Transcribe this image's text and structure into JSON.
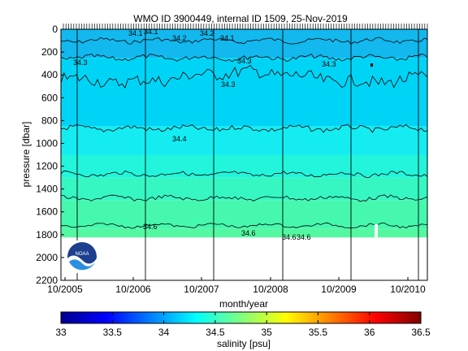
{
  "chart_data": {
    "type": "heatmap",
    "title": "WMO ID 3900449, internal ID 1509, 25-Nov-2019",
    "xlabel": "month/year",
    "ylabel": "pressure [dbar]",
    "x_ticks": [
      "10/2005",
      "10/2006",
      "10/2007",
      "10/2008",
      "10/2009",
      "10/2010"
    ],
    "y_ticks": [
      0,
      200,
      400,
      600,
      800,
      1000,
      1200,
      1400,
      1600,
      1800,
      2000,
      2200
    ],
    "ylim": [
      0,
      2200
    ],
    "y_reversed": true,
    "data_bottom_pressure": 1825,
    "colorbar": {
      "label": "salinity [psu]",
      "range": [
        33,
        36.5
      ],
      "ticks": [
        "33",
        "33.5",
        "34",
        "34.5",
        "35",
        "35.5",
        "36",
        "36.5"
      ],
      "colormap": "jet"
    },
    "layers": [
      {
        "top": 0,
        "bottom": 250,
        "salinity": 34.05,
        "color": "#12b8ee"
      },
      {
        "top": 250,
        "bottom": 850,
        "salinity": 34.2,
        "color": "#00d4f6"
      },
      {
        "top": 850,
        "bottom": 1100,
        "salinity": 34.4,
        "color": "#14ecf2"
      },
      {
        "top": 1100,
        "bottom": 1300,
        "salinity": 34.5,
        "color": "#22f5dc"
      },
      {
        "top": 1300,
        "bottom": 1500,
        "salinity": 34.55,
        "color": "#36f7c2"
      },
      {
        "top": 1500,
        "bottom": 1750,
        "salinity": 34.6,
        "color": "#46f8ae"
      },
      {
        "top": 1750,
        "bottom": 1825,
        "salinity": 34.65,
        "color": "#54f8a0"
      }
    ],
    "contours": [
      {
        "level": "34.1",
        "mean_pressure": 100
      },
      {
        "level": "34.2",
        "mean_pressure": 250
      },
      {
        "level": "34.3",
        "mean_pressure": 420
      },
      {
        "level": "34.4",
        "mean_pressure": 870
      },
      {
        "level": "34.5",
        "mean_pressure": 1270
      },
      {
        "level": "34.55",
        "mean_pressure": 1480
      },
      {
        "level": "34.6",
        "mean_pressure": 1720
      }
    ],
    "contour_labels": [
      {
        "text": "34.1",
        "x": "10/2006",
        "y": 40
      },
      {
        "text": "34.1",
        "x": "10/2006+",
        "y": 30
      },
      {
        "text": "34.2",
        "x": "10/2006++",
        "y": 80
      },
      {
        "text": "34.2",
        "x": "10/2007",
        "y": 35
      },
      {
        "text": "34.1",
        "x": "10/2007+",
        "y": 70
      },
      {
        "text": "34.3",
        "x": "10/2005",
        "y": 290
      },
      {
        "text": "34.3",
        "x": "10/2008",
        "y": 270
      },
      {
        "text": "34.3",
        "x": "10/2007",
        "y": 490
      },
      {
        "text": "34.3",
        "x": "10/2009",
        "y": 300
      },
      {
        "text": "34.4",
        "x": "10/2007",
        "y": 980
      },
      {
        "text": "34.6",
        "x": "10/2006",
        "y": 1740
      },
      {
        "text": "34.6",
        "x": "10/2008",
        "y": 1800
      },
      {
        "text": "34.6",
        "x": "10/2009",
        "y": 1840
      },
      {
        "text": "34.6",
        "x": "10/2009+",
        "y": 1840
      }
    ],
    "float_gaps_dates": [
      "12/2005",
      "10/2006",
      "10/2007",
      "10/2008",
      "10/2009",
      "09/2010"
    ]
  },
  "logo": {
    "text": "NOAA"
  }
}
